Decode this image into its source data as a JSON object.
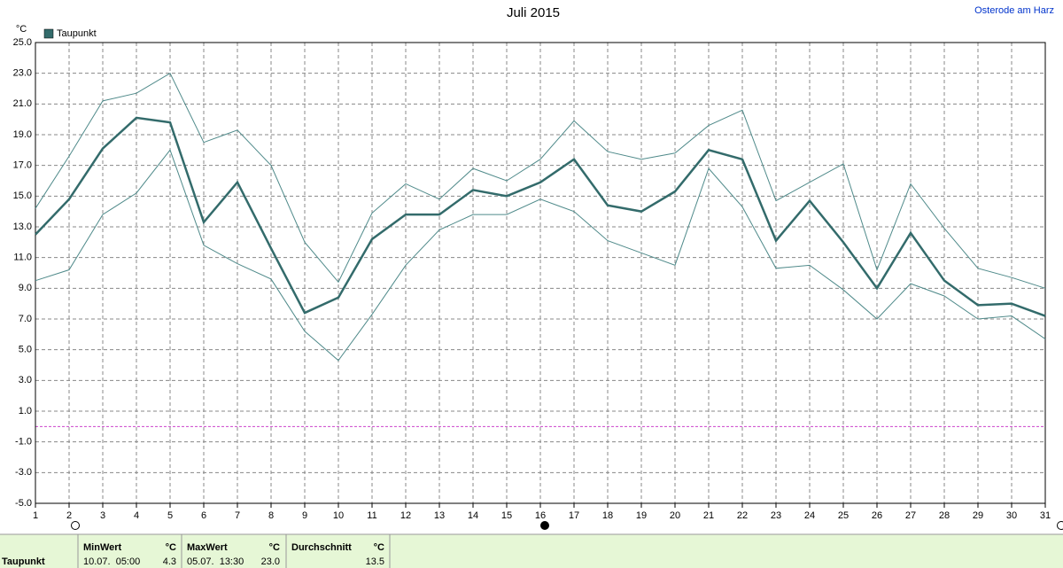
{
  "chart_data": {
    "type": "line",
    "title": "Juli 2015",
    "location": "Osterode am Harz",
    "y_unit": "°C",
    "x": [
      1,
      2,
      3,
      4,
      5,
      6,
      7,
      8,
      9,
      10,
      11,
      12,
      13,
      14,
      15,
      16,
      17,
      18,
      19,
      20,
      21,
      22,
      23,
      24,
      25,
      26,
      27,
      28,
      29,
      30,
      31
    ],
    "xlim": [
      1,
      31
    ],
    "xticks": [
      1,
      2,
      3,
      4,
      5,
      6,
      7,
      8,
      9,
      10,
      11,
      12,
      13,
      14,
      15,
      16,
      17,
      18,
      19,
      20,
      21,
      22,
      23,
      24,
      25,
      26,
      27,
      28,
      29,
      30,
      31
    ],
    "ylim": [
      -5,
      25
    ],
    "yticks": [
      {
        "value": -5,
        "label": "-5.0"
      },
      {
        "value": -3,
        "label": "-3.0"
      },
      {
        "value": -1,
        "label": "-1.0"
      },
      {
        "value": 1,
        "label": "1.0"
      },
      {
        "value": 3,
        "label": "3.0"
      },
      {
        "value": 5,
        "label": "5.0"
      },
      {
        "value": 7,
        "label": "7.0"
      },
      {
        "value": 9,
        "label": "9.0"
      },
      {
        "value": 11,
        "label": "11.0"
      },
      {
        "value": 13,
        "label": "13.0"
      },
      {
        "value": 15,
        "label": "15.0"
      },
      {
        "value": 17,
        "label": "17.0"
      },
      {
        "value": 19,
        "label": "19.0"
      },
      {
        "value": 21,
        "label": "21.0"
      },
      {
        "value": 23,
        "label": "23.0"
      },
      {
        "value": 25,
        "label": "25.0"
      }
    ],
    "grid": true,
    "reference_line": {
      "value": 0,
      "color": "#cc44cc"
    },
    "series": [
      {
        "name": "Taupunkt",
        "color": "#336b6b",
        "width": 2.5,
        "values": [
          12.5,
          14.8,
          18.1,
          20.1,
          19.8,
          13.3,
          15.9,
          11.6,
          7.4,
          8.4,
          12.2,
          13.8,
          13.8,
          15.4,
          15.0,
          15.9,
          17.4,
          14.4,
          14.0,
          15.3,
          18.0,
          17.4,
          12.1,
          14.7,
          12.0,
          9.0,
          12.6,
          9.5,
          7.9,
          8.0,
          7.2
        ]
      },
      {
        "color": "#4f8a8a",
        "width": 1,
        "values": [
          14.2,
          17.6,
          21.2,
          21.7,
          23.0,
          18.5,
          19.3,
          17.0,
          12.0,
          9.4,
          13.9,
          15.8,
          14.8,
          16.8,
          16.0,
          17.4,
          19.9,
          17.9,
          17.4,
          17.8,
          19.6,
          20.6,
          14.7,
          15.9,
          17.1,
          10.2,
          15.8,
          12.9,
          10.3,
          9.7,
          9.0
        ]
      },
      {
        "color": "#4f8a8a",
        "width": 1,
        "values": [
          9.5,
          10.2,
          13.8,
          15.2,
          18.0,
          11.8,
          10.6,
          9.6,
          6.2,
          4.3,
          7.3,
          10.5,
          12.8,
          13.8,
          13.8,
          14.8,
          14.0,
          12.1,
          11.3,
          10.5,
          16.8,
          14.3,
          10.3,
          10.5,
          8.9,
          7.0,
          9.3,
          8.5,
          7.0,
          7.2,
          5.7
        ]
      }
    ]
  },
  "summary": {
    "row_label": "Taupunkt",
    "columns": [
      {
        "header": "MinWert",
        "unit": "°C",
        "time": "10.07.  05:00",
        "value": "4.3"
      },
      {
        "header": "MaxWert",
        "unit": "°C",
        "time": "05.07.  13:30",
        "value": "23.0"
      },
      {
        "header": "Durchschnitt",
        "unit": "°C",
        "time": "",
        "value": "13.5"
      }
    ]
  }
}
